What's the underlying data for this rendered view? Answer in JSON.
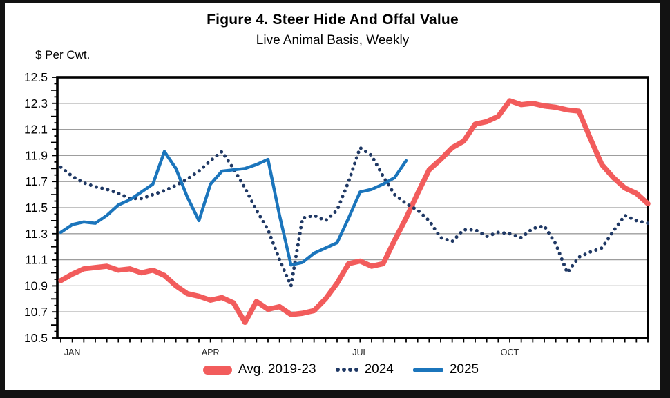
{
  "figure": {
    "title": "Figure 4. Steer Hide And Offal Value",
    "subtitle": "Live Animal Basis, Weekly",
    "y_axis_label": "$ Per Cwt."
  },
  "chart_data": {
    "type": "line",
    "title": "Figure 4. Steer Hide And Offal Value",
    "subtitle": "Live Animal Basis, Weekly",
    "xlabel": "",
    "ylabel": "$ Per Cwt.",
    "x_unit": "week-of-year",
    "weeks": 52,
    "ylim": [
      10.5,
      12.5
    ],
    "y_major_step": 0.2,
    "y_minor_step": 0.05,
    "grid": true,
    "gridline_color": "#9d9d9d",
    "frame_color": "#000000",
    "legend_position": "bottom",
    "y_tick_labels": [
      "10.5",
      "10.7",
      "10.9",
      "11.1",
      "11.3",
      "11.5",
      "11.7",
      "11.9",
      "12.1",
      "12.3",
      "12.5"
    ],
    "x_ticks": [
      {
        "label": "JAN",
        "week": 2
      },
      {
        "label": "APR",
        "week": 14
      },
      {
        "label": "JUL",
        "week": 27
      },
      {
        "label": "OCT",
        "week": 40
      }
    ],
    "series": [
      {
        "name": "Avg. 2019-23",
        "color": "#F25C5C",
        "style": "solid-thick",
        "values": [
          10.94,
          10.99,
          11.03,
          11.04,
          11.05,
          11.02,
          11.03,
          11.0,
          11.02,
          10.98,
          10.9,
          10.84,
          10.82,
          10.79,
          10.81,
          10.77,
          10.62,
          10.78,
          10.72,
          10.74,
          10.68,
          10.69,
          10.71,
          10.8,
          10.92,
          11.07,
          11.09,
          11.05,
          11.07,
          11.25,
          11.42,
          11.61,
          11.79,
          11.87,
          11.96,
          12.01,
          12.14,
          12.16,
          12.2,
          12.32,
          12.29,
          12.3,
          12.28,
          12.27,
          12.25,
          12.24,
          12.03,
          11.83,
          11.73,
          11.65,
          11.61,
          11.53
        ]
      },
      {
        "name": "2024",
        "color": "#1F3864",
        "style": "dotted",
        "values": [
          11.81,
          11.74,
          11.69,
          11.66,
          11.64,
          11.61,
          11.57,
          11.57,
          11.6,
          11.63,
          11.67,
          11.72,
          11.78,
          11.86,
          11.93,
          11.8,
          11.65,
          11.48,
          11.33,
          11.1,
          10.9,
          11.42,
          11.44,
          11.4,
          11.48,
          11.7,
          11.96,
          11.9,
          11.74,
          11.6,
          11.53,
          11.48,
          11.4,
          11.27,
          11.24,
          11.33,
          11.33,
          11.28,
          11.31,
          11.3,
          11.27,
          11.34,
          11.36,
          11.22,
          11.0,
          11.12,
          11.16,
          11.19,
          11.32,
          11.44,
          11.4,
          11.38
        ]
      },
      {
        "name": "2025",
        "color": "#1B75BC",
        "style": "solid",
        "values": [
          11.31,
          11.37,
          11.39,
          11.38,
          11.44,
          11.52,
          11.56,
          11.62,
          11.68,
          11.93,
          11.8,
          11.58,
          11.4,
          11.68,
          11.78,
          11.79,
          11.8,
          11.83,
          11.87,
          11.44,
          11.06,
          11.08,
          11.15,
          11.19,
          11.23,
          11.42,
          11.62,
          11.64,
          11.68,
          11.73,
          11.86
        ]
      }
    ]
  }
}
